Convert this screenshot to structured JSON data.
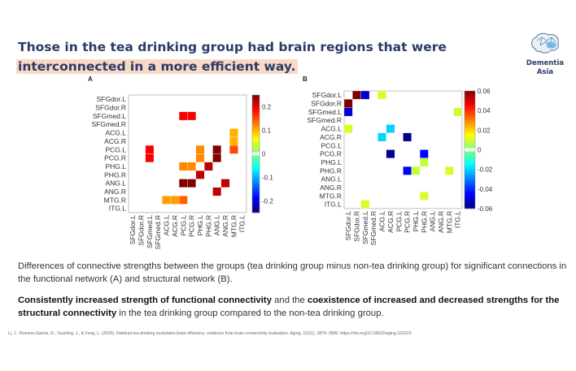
{
  "slide": {
    "title_line1": "Those in the tea drinking group had brain regions that were",
    "title_line2": "interconnected in a more efficient way.",
    "logo": {
      "line1": "Dementia",
      "line2": "Asia"
    },
    "caption": "Differences of connective strengths between the groups (tea drinking group minus non-tea drinking group) for significant connections in the functional network (A) and structural network (B).",
    "summary": {
      "bold1": "Consistently increased strength of functional connectivity",
      "text1": " and the ",
      "bold2": "coexistence of increased and decreased strengths for the structural connectivity",
      "text2": " in the tea drinking group compared to the non-tea drinking group."
    },
    "citation": "Li, J., Romero-Garcia, R., Suckling, J., & Feng, L. (2019). Habitual tea drinking modulates brain efficiency: evidence from brain connectivity evaluation. Aging, 11(11), 3876–3890. https://doi.org/10.18632/aging.102023",
    "accent_color": "#2b3a67",
    "highlight_color": "#f8d9c6"
  },
  "chart_data": [
    {
      "type": "heatmap",
      "panel_label": "A",
      "regions": [
        "SFGdor.L",
        "SFGdor.R",
        "SFGmed.L",
        "SFGmed.R",
        "ACG.L",
        "ACG.R",
        "PCG.L",
        "PCG.R",
        "PHG.L",
        "PHG.R",
        "ANG.L",
        "ANG.R",
        "MTG.R",
        "ITG.L"
      ],
      "colormap": "jet",
      "clim": [
        -0.25,
        0.25
      ],
      "colorbar_ticks": [
        0.2,
        0.1,
        0,
        -0.1,
        -0.2
      ],
      "cells": [
        {
          "row": "SFGmed.L",
          "col": "PCG.L",
          "value": 0.19
        },
        {
          "row": "SFGmed.L",
          "col": "PCG.R",
          "value": 0.19
        },
        {
          "row": "ACG.L",
          "col": "MTG.R",
          "value": 0.1
        },
        {
          "row": "ACG.R",
          "col": "MTG.R",
          "value": 0.1
        },
        {
          "row": "PCG.L",
          "col": "SFGmed.L",
          "value": 0.19
        },
        {
          "row": "PCG.L",
          "col": "PHG.L",
          "value": 0.12
        },
        {
          "row": "PCG.L",
          "col": "ANG.L",
          "value": 0.25
        },
        {
          "row": "PCG.L",
          "col": "MTG.R",
          "value": 0.15
        },
        {
          "row": "PCG.R",
          "col": "SFGmed.L",
          "value": 0.19
        },
        {
          "row": "PCG.R",
          "col": "PHG.L",
          "value": 0.12
        },
        {
          "row": "PCG.R",
          "col": "ANG.L",
          "value": 0.25
        },
        {
          "row": "PHG.L",
          "col": "PCG.L",
          "value": 0.12
        },
        {
          "row": "PHG.L",
          "col": "PCG.R",
          "value": 0.12
        },
        {
          "row": "PHG.L",
          "col": "PHG.R",
          "value": 0.22
        },
        {
          "row": "PHG.R",
          "col": "PHG.L",
          "value": 0.22
        },
        {
          "row": "ANG.L",
          "col": "PCG.L",
          "value": 0.25
        },
        {
          "row": "ANG.L",
          "col": "PCG.R",
          "value": 0.25
        },
        {
          "row": "ANG.L",
          "col": "ANG.R",
          "value": 0.22
        },
        {
          "row": "ANG.R",
          "col": "ANG.L",
          "value": 0.22
        },
        {
          "row": "MTG.R",
          "col": "ACG.L",
          "value": 0.11
        },
        {
          "row": "MTG.R",
          "col": "ACG.R",
          "value": 0.11
        },
        {
          "row": "MTG.R",
          "col": "PCG.L",
          "value": 0.14
        }
      ]
    },
    {
      "type": "heatmap",
      "panel_label": "B",
      "regions": [
        "SFGdor.L",
        "SFGdor.R",
        "SFGmed.L",
        "SFGmed.R",
        "ACG.L",
        "ACG.R",
        "PCG.L",
        "PCG.R",
        "PHG.L",
        "PHG.R",
        "ANG.L",
        "ANG.R",
        "MTG.R",
        "ITG.L"
      ],
      "colormap": "jet",
      "clim": [
        -0.06,
        0.06
      ],
      "colorbar_ticks": [
        0.06,
        0.04,
        0.02,
        0,
        -0.02,
        -0.04,
        -0.06
      ],
      "cells": [
        {
          "row": "SFGdor.L",
          "col": "SFGdor.R",
          "value": 0.06
        },
        {
          "row": "SFGdor.L",
          "col": "SFGmed.L",
          "value": -0.05
        },
        {
          "row": "SFGdor.L",
          "col": "ACG.L",
          "value": 0.01
        },
        {
          "row": "SFGdor.R",
          "col": "SFGdor.L",
          "value": 0.06
        },
        {
          "row": "SFGmed.L",
          "col": "SFGdor.L",
          "value": -0.05
        },
        {
          "row": "SFGmed.L",
          "col": "ITG.L",
          "value": 0.009
        },
        {
          "row": "ACG.L",
          "col": "SFGdor.L",
          "value": 0.01
        },
        {
          "row": "ACG.L",
          "col": "ACG.R",
          "value": -0.02
        },
        {
          "row": "ACG.R",
          "col": "ACG.L",
          "value": -0.02
        },
        {
          "row": "ACG.R",
          "col": "PCG.R",
          "value": -0.058
        },
        {
          "row": "PCG.R",
          "col": "ACG.R",
          "value": -0.058
        },
        {
          "row": "PCG.R",
          "col": "PHG.R",
          "value": -0.045
        },
        {
          "row": "PHG.L",
          "col": "PHG.R",
          "value": 0.008
        },
        {
          "row": "PHG.R",
          "col": "PCG.R",
          "value": -0.045
        },
        {
          "row": "PHG.R",
          "col": "PHG.L",
          "value": 0.008
        },
        {
          "row": "PHG.R",
          "col": "MTG.R",
          "value": 0.01
        },
        {
          "row": "MTG.R",
          "col": "PHG.R",
          "value": 0.01
        },
        {
          "row": "ITG.L",
          "col": "SFGmed.L",
          "value": 0.01
        }
      ]
    }
  ]
}
